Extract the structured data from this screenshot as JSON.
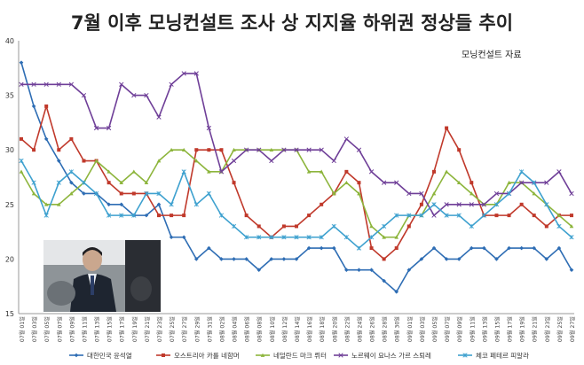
{
  "title": "7월 이후 모닝컨설트 조사 상 지지율 하위권 정상들 추이",
  "source": "모닝컨설트 자료",
  "photo_alt": "",
  "chart_data": {
    "type": "line",
    "title": "7월 이후 모닝컨설트 조사 상 지지율 하위권 정상들 추이",
    "ylim": [
      15,
      40
    ],
    "yticks": [
      15,
      20,
      25,
      30,
      35,
      40
    ],
    "grid": false,
    "legend_position": "bottom",
    "x": [
      "07월 01일",
      "07월 03일",
      "07월 05일",
      "07월 07일",
      "07월 09일",
      "07월 11일",
      "07월 13일",
      "07월 15일",
      "07월 17일",
      "07월 19일",
      "07월 21일",
      "07월 23일",
      "07월 25일",
      "07월 27일",
      "07월 29일",
      "07월 31일",
      "08월 02일",
      "08월 04일",
      "08월 06일",
      "08월 08일",
      "08월 10일",
      "08월 12일",
      "08월 14일",
      "08월 16일",
      "08월 18일",
      "08월 20일",
      "08월 22일",
      "08월 24일",
      "08월 26일",
      "08월 28일",
      "08월 30일",
      "09월 01일",
      "09월 03일",
      "09월 05일",
      "09월 07일",
      "09월 09일",
      "09월 11일",
      "09월 13일",
      "09월 15일",
      "09월 17일",
      "09월 19일",
      "09월 21일",
      "09월 23일",
      "09월 25일",
      "09월 27일"
    ],
    "series": [
      {
        "name": "대한민국 윤석열",
        "color": "#2e6db4",
        "marker": "diamond",
        "values": [
          38,
          34,
          31,
          29,
          27,
          26,
          26,
          25,
          25,
          24,
          24,
          25,
          22,
          22,
          20,
          21,
          20,
          20,
          20,
          19,
          20,
          20,
          20,
          21,
          21,
          21,
          19,
          19,
          19,
          18,
          17,
          19,
          20,
          21,
          20,
          20,
          21,
          21,
          20,
          21,
          21,
          21,
          20,
          21,
          19
        ]
      },
      {
        "name": "오스트리아 카를 네함머",
        "color": "#c0392b",
        "marker": "square",
        "values": [
          31,
          30,
          34,
          30,
          31,
          29,
          29,
          27,
          26,
          26,
          26,
          24,
          24,
          24,
          30,
          30,
          30,
          27,
          24,
          23,
          22,
          23,
          23,
          24,
          25,
          26,
          28,
          27,
          21,
          20,
          21,
          23,
          25,
          28,
          32,
          30,
          27,
          24,
          24,
          24,
          25,
          24,
          23,
          24,
          24
        ]
      },
      {
        "name": "네덜란드 마크 뤼터",
        "color": "#8db53c",
        "marker": "triangle",
        "values": [
          28,
          26,
          25,
          25,
          26,
          27,
          29,
          28,
          27,
          28,
          27,
          29,
          30,
          30,
          29,
          28,
          28,
          30,
          30,
          30,
          30,
          30,
          30,
          28,
          28,
          26,
          27,
          26,
          23,
          22,
          22,
          24,
          24,
          26,
          28,
          27,
          26,
          25,
          25,
          27,
          27,
          26,
          25,
          24,
          23
        ]
      },
      {
        "name": "노르웨이 요나스 가르 스퇴레",
        "color": "#6f3f98",
        "marker": "x",
        "values": [
          36,
          36,
          36,
          36,
          36,
          35,
          32,
          32,
          36,
          35,
          35,
          33,
          36,
          37,
          37,
          32,
          28,
          29,
          30,
          30,
          29,
          30,
          30,
          30,
          30,
          29,
          31,
          30,
          28,
          27,
          27,
          26,
          26,
          24,
          25,
          25,
          25,
          25,
          26,
          26,
          27,
          27,
          27,
          28,
          26
        ]
      },
      {
        "name": "체코 페테르 피알라",
        "color": "#3ea1cf",
        "marker": "star",
        "values": [
          29,
          27,
          24,
          27,
          28,
          27,
          26,
          24,
          24,
          24,
          26,
          26,
          25,
          28,
          25,
          26,
          24,
          23,
          22,
          22,
          22,
          22,
          22,
          22,
          22,
          23,
          22,
          21,
          22,
          23,
          24,
          24,
          24,
          25,
          24,
          24,
          23,
          24,
          25,
          26,
          28,
          27,
          25,
          23,
          22
        ]
      }
    ]
  }
}
